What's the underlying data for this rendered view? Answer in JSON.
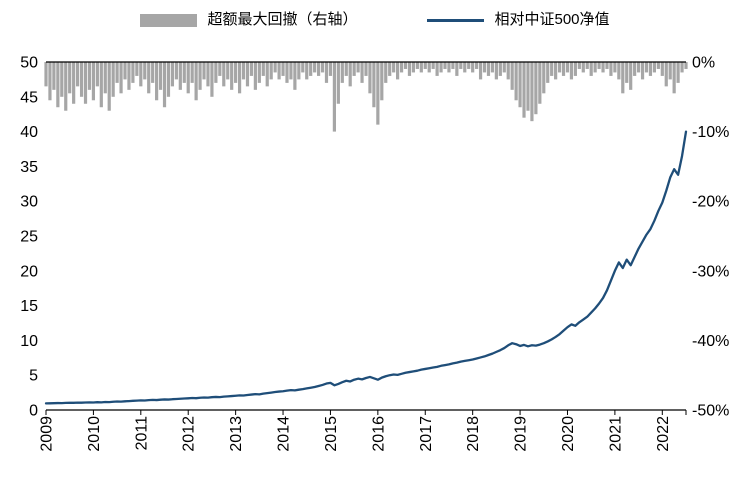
{
  "legend": {
    "items": [
      {
        "label": "超额最大回撤（右轴）",
        "color": "#a6a6a6",
        "type": "bar"
      },
      {
        "label": "相对中证500净值",
        "color": "#1f4e79",
        "type": "line"
      }
    ]
  },
  "chart_data": {
    "type": "combo",
    "title": "",
    "xlabel": "",
    "ylabel": "",
    "grid": false,
    "legend_position": "top",
    "x_start_year": 2009,
    "x_step_months": 1,
    "x_tick_labels": [
      "2009",
      "2010",
      "2011",
      "2012",
      "2013",
      "2014",
      "2015",
      "2016",
      "2017",
      "2018",
      "2019",
      "2020",
      "2021",
      "2022"
    ],
    "left_axis": {
      "ticks": [
        0,
        5,
        10,
        15,
        20,
        25,
        30,
        35,
        40,
        45,
        50
      ],
      "range": [
        0,
        50
      ]
    },
    "right_axis": {
      "tick_labels": [
        "0%",
        "-10%",
        "-20%",
        "-30%",
        "-40%",
        "-50%"
      ],
      "range": [
        0,
        -50
      ]
    },
    "series": [
      {
        "name": "超额最大回撤（右轴）",
        "type": "bar",
        "axis": "right",
        "color": "#a6a6a6",
        "values": [
          -3.5,
          -5.5,
          -4.0,
          -6.5,
          -5.0,
          -7.0,
          -4.5,
          -6.0,
          -3.5,
          -5.0,
          -6.0,
          -4.0,
          -5.5,
          -3.5,
          -6.5,
          -4.5,
          -7.0,
          -5.0,
          -3.0,
          -4.5,
          -2.5,
          -4.0,
          -3.0,
          -2.0,
          -3.5,
          -2.5,
          -4.5,
          -3.0,
          -5.5,
          -4.0,
          -6.5,
          -5.0,
          -3.5,
          -2.5,
          -4.0,
          -3.0,
          -4.5,
          -3.0,
          -5.5,
          -4.0,
          -2.5,
          -3.5,
          -5.0,
          -3.0,
          -2.0,
          -3.5,
          -2.5,
          -4.0,
          -3.0,
          -4.5,
          -2.5,
          -3.5,
          -2.0,
          -4.0,
          -3.0,
          -2.0,
          -3.5,
          -2.5,
          -1.5,
          -2.5,
          -2.0,
          -3.0,
          -2.5,
          -4.0,
          -2.5,
          -1.5,
          -2.5,
          -2.0,
          -1.5,
          -2.0,
          -1.5,
          -3.0,
          -2.0,
          -10.0,
          -6.0,
          -3.0,
          -2.0,
          -3.5,
          -2.0,
          -1.5,
          -3.0,
          -2.0,
          -4.5,
          -6.5,
          -9.0,
          -5.5,
          -3.0,
          -2.0,
          -1.5,
          -2.5,
          -1.5,
          -1.0,
          -2.0,
          -1.5,
          -1.0,
          -1.5,
          -1.0,
          -1.5,
          -1.0,
          -2.0,
          -1.5,
          -1.0,
          -1.5,
          -1.0,
          -2.0,
          -1.0,
          -1.5,
          -1.0,
          -1.5,
          -1.0,
          -2.5,
          -1.5,
          -2.0,
          -1.5,
          -2.5,
          -2.0,
          -1.5,
          -2.5,
          -4.0,
          -5.5,
          -6.5,
          -8.0,
          -7.0,
          -8.5,
          -7.5,
          -6.0,
          -4.5,
          -3.0,
          -2.0,
          -2.5,
          -1.5,
          -2.0,
          -1.5,
          -2.5,
          -2.0,
          -1.0,
          -1.5,
          -1.0,
          -2.0,
          -1.5,
          -1.0,
          -1.5,
          -1.0,
          -2.0,
          -1.5,
          -2.5,
          -4.5,
          -3.0,
          -4.0,
          -2.0,
          -1.5,
          -2.5,
          -1.5,
          -2.0,
          -1.5,
          -1.0,
          -2.0,
          -3.5,
          -2.5,
          -4.5,
          -3.0,
          -1.5,
          -1.0
        ]
      },
      {
        "name": "相对中证500净值",
        "type": "line",
        "axis": "left",
        "color": "#1f4e79",
        "values": [
          0.95,
          0.96,
          0.98,
          1.0,
          0.99,
          1.02,
          1.04,
          1.03,
          1.06,
          1.05,
          1.08,
          1.1,
          1.08,
          1.12,
          1.1,
          1.15,
          1.13,
          1.18,
          1.22,
          1.2,
          1.25,
          1.28,
          1.32,
          1.35,
          1.38,
          1.36,
          1.42,
          1.45,
          1.43,
          1.48,
          1.52,
          1.5,
          1.55,
          1.58,
          1.62,
          1.65,
          1.68,
          1.72,
          1.7,
          1.76,
          1.8,
          1.78,
          1.84,
          1.88,
          1.85,
          1.92,
          1.96,
          2.0,
          2.05,
          2.1,
          2.08,
          2.15,
          2.22,
          2.28,
          2.25,
          2.35,
          2.42,
          2.5,
          2.58,
          2.65,
          2.7,
          2.78,
          2.85,
          2.82,
          2.92,
          3.0,
          3.1,
          3.2,
          3.3,
          3.45,
          3.6,
          3.8,
          3.9,
          3.55,
          3.75,
          4.0,
          4.2,
          4.1,
          4.35,
          4.5,
          4.4,
          4.6,
          4.75,
          4.55,
          4.35,
          4.65,
          4.85,
          5.0,
          5.1,
          5.05,
          5.2,
          5.35,
          5.45,
          5.55,
          5.65,
          5.8,
          5.9,
          6.0,
          6.1,
          6.2,
          6.35,
          6.45,
          6.55,
          6.7,
          6.8,
          6.95,
          7.05,
          7.15,
          7.25,
          7.4,
          7.55,
          7.7,
          7.9,
          8.1,
          8.35,
          8.6,
          8.9,
          9.3,
          9.6,
          9.45,
          9.2,
          9.35,
          9.15,
          9.3,
          9.25,
          9.4,
          9.6,
          9.85,
          10.15,
          10.5,
          10.9,
          11.4,
          11.9,
          12.3,
          12.1,
          12.6,
          13.0,
          13.4,
          14.0,
          14.6,
          15.3,
          16.1,
          17.2,
          18.6,
          20.0,
          21.2,
          20.4,
          21.6,
          20.8,
          22.0,
          23.2,
          24.2,
          25.2,
          26.0,
          27.2,
          28.6,
          29.8,
          31.5,
          33.4,
          34.6,
          33.8,
          36.5,
          40.0
        ]
      }
    ]
  }
}
